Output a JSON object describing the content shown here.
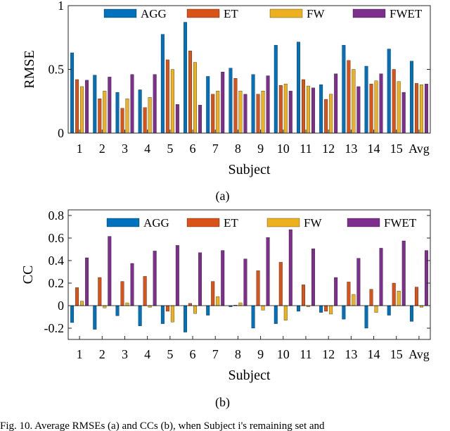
{
  "chart_data": [
    {
      "type": "bar",
      "panel_label": "(a)",
      "xlabel": "Subject",
      "ylabel": "RMSE",
      "ylim": [
        0,
        1
      ],
      "yticks": [
        0,
        0.5,
        1
      ],
      "ytick_labels": [
        "0",
        "0.5",
        "1"
      ],
      "grid": false,
      "legend_position": "top",
      "categories": [
        "1",
        "2",
        "3",
        "4",
        "5",
        "6",
        "7",
        "8",
        "9",
        "10",
        "11",
        "12",
        "13",
        "14",
        "15",
        "Avg"
      ],
      "series": [
        {
          "name": "AGG",
          "color": "#0072BD",
          "values": [
            0.63,
            0.455,
            0.32,
            0.34,
            0.775,
            0.87,
            0.445,
            0.51,
            0.46,
            0.69,
            0.715,
            0.38,
            0.69,
            0.525,
            0.66,
            0.565
          ]
        },
        {
          "name": "ET",
          "color": "#D95319",
          "values": [
            0.42,
            0.27,
            0.195,
            0.2,
            0.575,
            0.645,
            0.305,
            0.43,
            0.305,
            0.375,
            0.42,
            0.265,
            0.57,
            0.385,
            0.5,
            0.39
          ]
        },
        {
          "name": "FW",
          "color": "#EDB120",
          "values": [
            0.365,
            0.33,
            0.27,
            0.28,
            0.5,
            0.555,
            0.33,
            0.33,
            0.33,
            0.385,
            0.37,
            0.305,
            0.5,
            0.41,
            0.405,
            0.38
          ]
        },
        {
          "name": "FWET",
          "color": "#7E2F8E",
          "values": [
            0.415,
            0.44,
            0.46,
            0.46,
            0.225,
            0.22,
            0.48,
            0.305,
            0.45,
            0.33,
            0.355,
            0.465,
            0.365,
            0.465,
            0.32,
            0.385
          ]
        }
      ]
    },
    {
      "type": "bar",
      "panel_label": "(b)",
      "xlabel": "Subject",
      "ylabel": "CC",
      "ylim": [
        -0.3,
        0.85
      ],
      "yticks": [
        -0.2,
        0,
        0.2,
        0.4,
        0.6,
        0.8
      ],
      "ytick_labels": [
        "-0.2",
        "0",
        "0.2",
        "0.4",
        "0.6",
        "0.8"
      ],
      "grid": false,
      "legend_position": "top",
      "categories": [
        "1",
        "2",
        "3",
        "4",
        "5",
        "6",
        "7",
        "8",
        "9",
        "10",
        "11",
        "12",
        "13",
        "14",
        "15",
        "Avg"
      ],
      "series": [
        {
          "name": "AGG",
          "color": "#0072BD",
          "values": [
            -0.15,
            -0.21,
            -0.09,
            -0.18,
            -0.16,
            -0.235,
            -0.085,
            -0.01,
            -0.2,
            -0.16,
            -0.05,
            -0.06,
            -0.12,
            -0.2,
            -0.085,
            -0.14
          ]
        },
        {
          "name": "ET",
          "color": "#D95319",
          "values": [
            0.16,
            0.25,
            0.215,
            0.26,
            -0.05,
            0.02,
            0.215,
            0.005,
            0.31,
            0.385,
            0.185,
            -0.05,
            0.21,
            0.145,
            0.2,
            0.165
          ]
        },
        {
          "name": "FW",
          "color": "#EDB120",
          "values": [
            0.04,
            -0.02,
            0.025,
            -0.015,
            -0.145,
            -0.07,
            0.08,
            0.025,
            -0.04,
            -0.13,
            -0.01,
            -0.075,
            0.1,
            -0.06,
            0.13,
            -0.015
          ]
        },
        {
          "name": "FWET",
          "color": "#7E2F8E",
          "values": [
            0.425,
            0.615,
            0.375,
            0.485,
            0.535,
            0.47,
            0.49,
            0.415,
            0.605,
            0.675,
            0.505,
            0.25,
            0.42,
            0.51,
            0.575,
            0.49
          ]
        }
      ]
    }
  ],
  "caption": "Fig. 10.  Average RMSEs (a) and CCs (b), when Subject i's remaining set and"
}
